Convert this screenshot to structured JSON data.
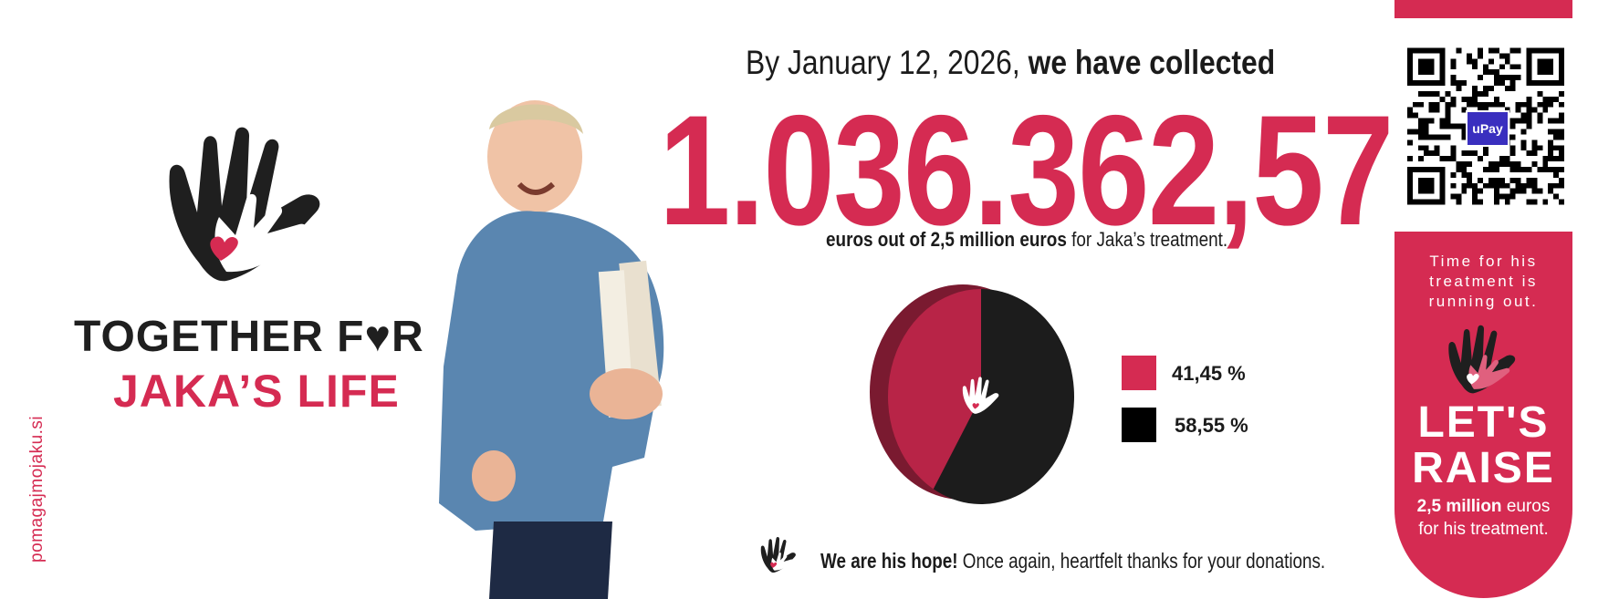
{
  "brand": {
    "website": "pomagajmojaku.si",
    "title_line1": "TOGETHER F♥R",
    "title_line2": "JAKA’S LIFE",
    "colors": {
      "accent": "#d52b52",
      "dark": "#1f1f1f",
      "upay": "#3a2fbf"
    }
  },
  "headline": {
    "prefix": "By January 12, 2026, ",
    "bold": "we have collected"
  },
  "amount": "1.036.362,57",
  "subline": {
    "bold": "euros out of 2,5 million euros",
    "rest": " for Jaka’s treatment."
  },
  "chart_data": {
    "type": "pie",
    "series": [
      {
        "label": "41,45 %",
        "value": 41.45,
        "color": "#d52b52"
      },
      {
        "label": "58,55 %",
        "value": 58.55,
        "color": "#1c1c1c"
      }
    ],
    "legend": "right"
  },
  "footer": {
    "bold": "We are his hope!",
    "rest": " Once again, heartfelt thanks for your donations."
  },
  "qr": {
    "badge": "uPay"
  },
  "panel": {
    "line1": "Time for his",
    "line2": "treatment is",
    "line3": "running out.",
    "cta1": "LET'S",
    "cta2": "RAISE",
    "goal_bold": "2,5 million",
    "goal_rest": " euros",
    "goal_line2": "for his treatment."
  }
}
